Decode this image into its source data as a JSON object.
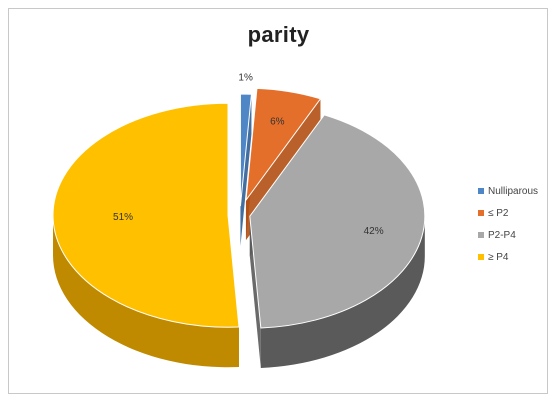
{
  "chart_data": {
    "type": "pie",
    "title": "parity",
    "categories": [
      "Nulliparous",
      "≤ P2",
      "P2-P4",
      "≥ P4"
    ],
    "values": [
      1,
      6,
      42,
      51
    ],
    "data_labels": [
      "1%",
      "6%",
      "42%",
      "51%"
    ],
    "colors": [
      "#4f86c6",
      "#e46f2b",
      "#a8a8a8",
      "#ffc000"
    ],
    "side_colors": [
      "#2d5f96",
      "#b34f13",
      "#5a5a5a",
      "#c08a00"
    ],
    "legend_position": "right",
    "style": "3d-exploded"
  }
}
